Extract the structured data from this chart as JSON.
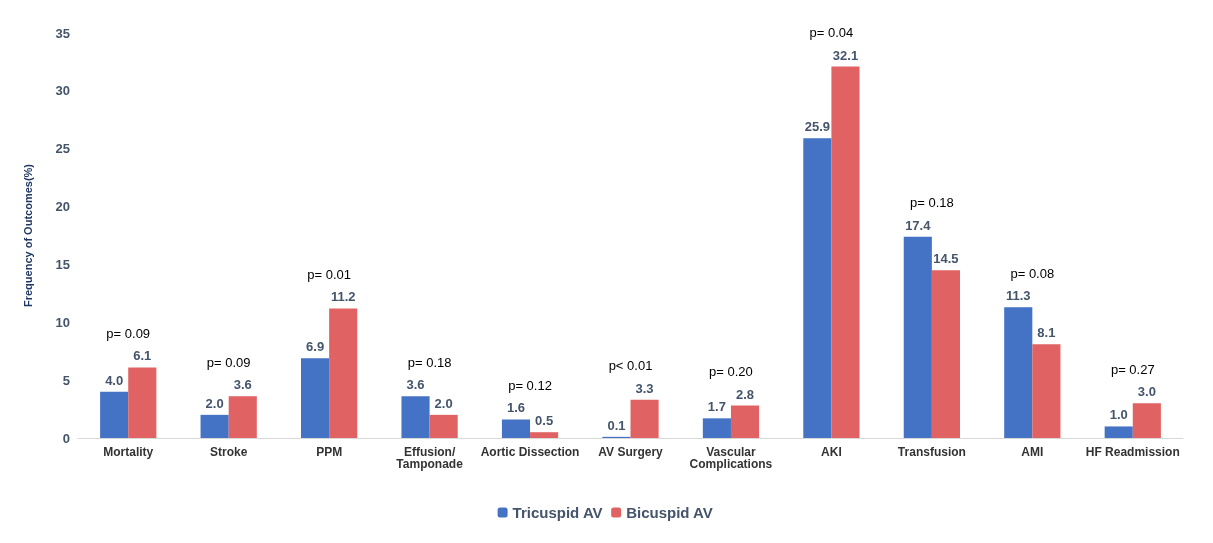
{
  "chart_data": {
    "type": "bar",
    "ylabel": "Frequency of Outcomes(%)",
    "categories": [
      "Mortality",
      "Stroke",
      "PPM",
      "Effusion/\nTamponade",
      "Aortic Dissection",
      "AV Surgery",
      "Vascular\nComplications",
      "AKI",
      "Transfusion",
      "AMI",
      "HF Readmission"
    ],
    "series": [
      {
        "name": "Tricuspid AV",
        "color": "#4472c4",
        "values": [
          4.0,
          2.0,
          6.9,
          3.6,
          1.6,
          0.1,
          1.7,
          25.9,
          17.4,
          11.3,
          1.0
        ],
        "value_labels": [
          "4.0",
          "2.0",
          "6.9",
          "3.6",
          "1.6",
          "0.1",
          "1.7",
          "25.9",
          "17.4",
          "11.3",
          "1.0"
        ]
      },
      {
        "name": "Bicuspid AV",
        "color": "#e06262",
        "values": [
          6.1,
          3.6,
          11.2,
          2.0,
          0.5,
          3.3,
          2.8,
          32.1,
          14.5,
          8.1,
          3.0
        ],
        "value_labels": [
          "6.1",
          "3.6",
          "11.2",
          "2.0",
          "0.5",
          "3.3",
          "2.8",
          "32.1",
          "14.5",
          "8.1",
          "3.0"
        ]
      }
    ],
    "ylim": [
      0,
      35
    ],
    "yticks": [
      0,
      5,
      10,
      15,
      20,
      25,
      30,
      35
    ],
    "grid": false,
    "legend": "bottom",
    "annotations": [
      "p= 0.09",
      "p= 0.09",
      "p= 0.01",
      "p= 0.18",
      "p= 0.12",
      "p< 0.01",
      "p= 0.20",
      "p= 0.04",
      "p= 0.18",
      "p= 0.08",
      "p= 0.27"
    ]
  }
}
